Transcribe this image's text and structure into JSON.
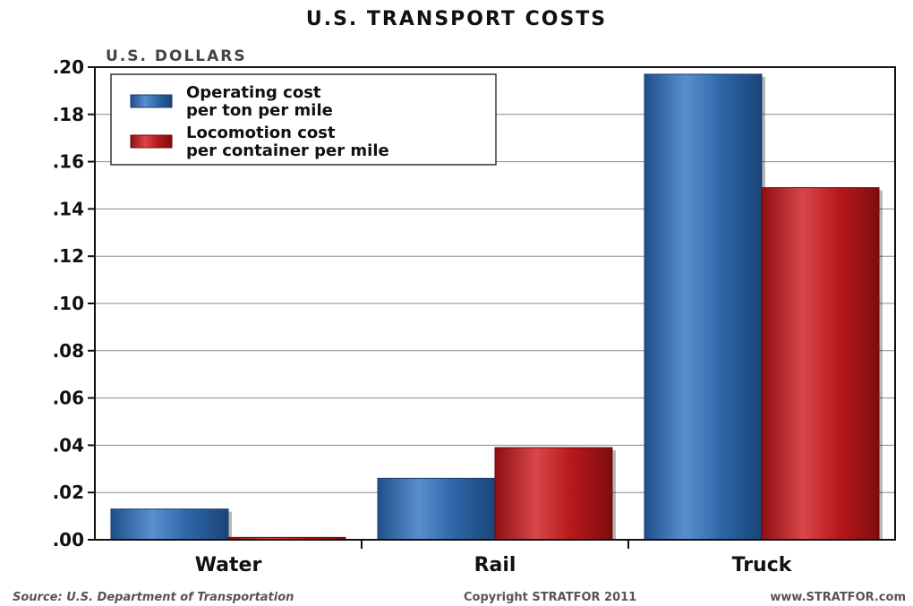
{
  "chart_data": {
    "type": "bar",
    "title": "U.S. TRANSPORT COSTS",
    "ylabel": "U.S. DOLLARS",
    "xlabel": "",
    "categories": [
      "Water",
      "Rail",
      "Truck"
    ],
    "series": [
      {
        "name": "Operating cost per ton per mile",
        "values": [
          0.013,
          0.026,
          0.197
        ],
        "color": "#2e67a8"
      },
      {
        "name": "Locomotion cost per container per mile",
        "values": [
          0.001,
          0.039,
          0.149
        ],
        "color": "#b8191b"
      }
    ],
    "ylim": [
      0,
      0.2
    ],
    "yticks": [
      ".00",
      ".02",
      ".04",
      ".06",
      ".08",
      ".10",
      ".12",
      ".14",
      ".16",
      ".18",
      ".20"
    ],
    "grid": true,
    "legend_position": "top-left"
  },
  "legend": [
    {
      "line1": "Operating cost",
      "line2": "per ton per mile"
    },
    {
      "line1": "Locomotion cost",
      "line2": "per container per mile"
    }
  ],
  "footer": {
    "source": "Source: U.S. Department of Transportation",
    "copyright": "Copyright STRATFOR 2011",
    "website": "www.STRATFOR.com"
  }
}
